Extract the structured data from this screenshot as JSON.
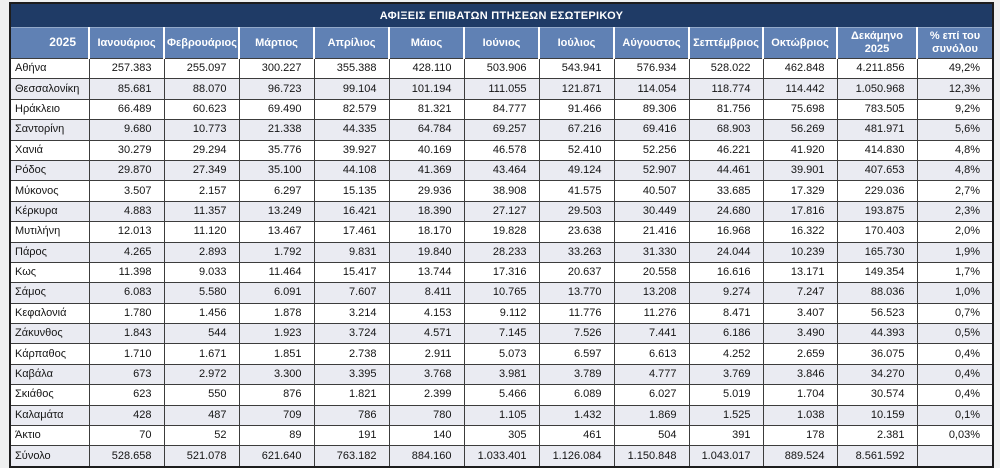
{
  "title": "ΑΦΙΞΕΙΣ ΕΠΙΒΑΤΩΝ ΠΤΗΣΕΩΝ ΕΣΩΤΕΡΙΚΟΥ",
  "colors": {
    "title_bg": "#1f3b66",
    "header_bg": "#6081b4",
    "stripe": "#eaebf2",
    "grid": "#3c3c3c",
    "page_bg": "#eff0f0"
  },
  "chart_data": {
    "type": "table",
    "title": "ΑΦΙΞΕΙΣ ΕΠΙΒΑΤΩΝ ΠΤΗΣΕΩΝ ΕΣΩΤΕΡΙΚΟΥ",
    "columns": [
      "2025",
      "Ιανουάριος",
      "Φεβρουάριος",
      "Μάρτιος",
      "Απρίλιος",
      "Μάιος",
      "Ιούνιος",
      "Ιούλιος",
      "Αύγουστος",
      "Σεπτέμβριος",
      "Οκτώβριος",
      "Δεκάμηνο 2025",
      "% επί του συνόλου"
    ],
    "rows": [
      {
        "name": "Αθήνα",
        "values": [
          "257.383",
          "255.097",
          "300.227",
          "355.388",
          "428.110",
          "503.906",
          "543.941",
          "576.934",
          "528.022",
          "462.848",
          "4.211.856",
          "49,2%"
        ]
      },
      {
        "name": "Θεσσαλονίκη",
        "values": [
          "85.681",
          "88.070",
          "96.723",
          "99.104",
          "101.194",
          "111.055",
          "121.871",
          "114.054",
          "118.774",
          "114.442",
          "1.050.968",
          "12,3%"
        ]
      },
      {
        "name": "Ηράκλειο",
        "values": [
          "66.489",
          "60.623",
          "69.490",
          "82.579",
          "81.321",
          "84.777",
          "91.466",
          "89.306",
          "81.756",
          "75.698",
          "783.505",
          "9,2%"
        ]
      },
      {
        "name": "Σαντορίνη",
        "values": [
          "9.680",
          "10.773",
          "21.338",
          "44.335",
          "64.784",
          "69.257",
          "67.216",
          "69.416",
          "68.903",
          "56.269",
          "481.971",
          "5,6%"
        ]
      },
      {
        "name": "Χανιά",
        "values": [
          "30.279",
          "29.294",
          "35.776",
          "39.927",
          "40.169",
          "46.578",
          "52.410",
          "52.256",
          "46.221",
          "41.920",
          "414.830",
          "4,8%"
        ]
      },
      {
        "name": "Ρόδος",
        "values": [
          "29.870",
          "27.349",
          "35.100",
          "44.108",
          "41.369",
          "43.464",
          "49.124",
          "52.907",
          "44.461",
          "39.901",
          "407.653",
          "4,8%"
        ]
      },
      {
        "name": "Μύκονος",
        "values": [
          "3.507",
          "2.157",
          "6.297",
          "15.135",
          "29.936",
          "38.908",
          "41.575",
          "40.507",
          "33.685",
          "17.329",
          "229.036",
          "2,7%"
        ]
      },
      {
        "name": "Κέρκυρα",
        "values": [
          "4.883",
          "11.357",
          "13.249",
          "16.421",
          "18.390",
          "27.127",
          "29.503",
          "30.449",
          "24.680",
          "17.816",
          "193.875",
          "2,3%"
        ]
      },
      {
        "name": "Μυτιλήνη",
        "values": [
          "12.013",
          "11.120",
          "13.467",
          "17.461",
          "18.170",
          "19.828",
          "23.638",
          "21.416",
          "16.968",
          "16.322",
          "170.403",
          "2,0%"
        ]
      },
      {
        "name": "Πάρος",
        "values": [
          "4.265",
          "2.893",
          "1.792",
          "9.831",
          "19.840",
          "28.233",
          "33.263",
          "31.330",
          "24.044",
          "10.239",
          "165.730",
          "1,9%"
        ]
      },
      {
        "name": "Κως",
        "values": [
          "11.398",
          "9.033",
          "11.464",
          "15.417",
          "13.744",
          "17.316",
          "20.637",
          "20.558",
          "16.616",
          "13.171",
          "149.354",
          "1,7%"
        ]
      },
      {
        "name": "Σάμος",
        "values": [
          "6.083",
          "5.580",
          "6.091",
          "7.607",
          "8.411",
          "10.765",
          "13.770",
          "13.208",
          "9.274",
          "7.247",
          "88.036",
          "1,0%"
        ]
      },
      {
        "name": "Κεφαλονιά",
        "values": [
          "1.780",
          "1.456",
          "1.878",
          "3.214",
          "4.153",
          "9.112",
          "11.776",
          "11.276",
          "8.471",
          "3.407",
          "56.523",
          "0,7%"
        ]
      },
      {
        "name": "Ζάκυνθος",
        "values": [
          "1.843",
          "544",
          "1.923",
          "3.724",
          "4.571",
          "7.145",
          "7.526",
          "7.441",
          "6.186",
          "3.490",
          "44.393",
          "0,5%"
        ]
      },
      {
        "name": "Κάρπαθος",
        "values": [
          "1.710",
          "1.671",
          "1.851",
          "2.738",
          "2.911",
          "5.073",
          "6.597",
          "6.613",
          "4.252",
          "2.659",
          "36.075",
          "0,4%"
        ]
      },
      {
        "name": "Καβάλα",
        "values": [
          "673",
          "2.972",
          "3.300",
          "3.395",
          "3.768",
          "3.981",
          "3.789",
          "4.777",
          "3.769",
          "3.846",
          "34.270",
          "0,4%"
        ]
      },
      {
        "name": "Σκιάθος",
        "values": [
          "623",
          "550",
          "876",
          "1.821",
          "2.399",
          "5.466",
          "6.089",
          "6.027",
          "5.019",
          "1.704",
          "30.574",
          "0,4%"
        ]
      },
      {
        "name": "Καλαμάτα",
        "values": [
          "428",
          "487",
          "709",
          "786",
          "780",
          "1.105",
          "1.432",
          "1.869",
          "1.525",
          "1.038",
          "10.159",
          "0,1%"
        ]
      },
      {
        "name": "Άκτιο",
        "values": [
          "70",
          "52",
          "89",
          "191",
          "140",
          "305",
          "461",
          "504",
          "391",
          "178",
          "2.381",
          "0,03%"
        ]
      },
      {
        "name": "Σύνολο",
        "values": [
          "528.658",
          "521.078",
          "621.640",
          "763.182",
          "884.160",
          "1.033.401",
          "1.126.084",
          "1.150.848",
          "1.043.017",
          "889.524",
          "8.561.592",
          ""
        ]
      }
    ],
    "totals_row_name": "Σύνολο",
    "layout": {
      "grid": true,
      "striped_rows": true,
      "label_column_first": true
    }
  }
}
